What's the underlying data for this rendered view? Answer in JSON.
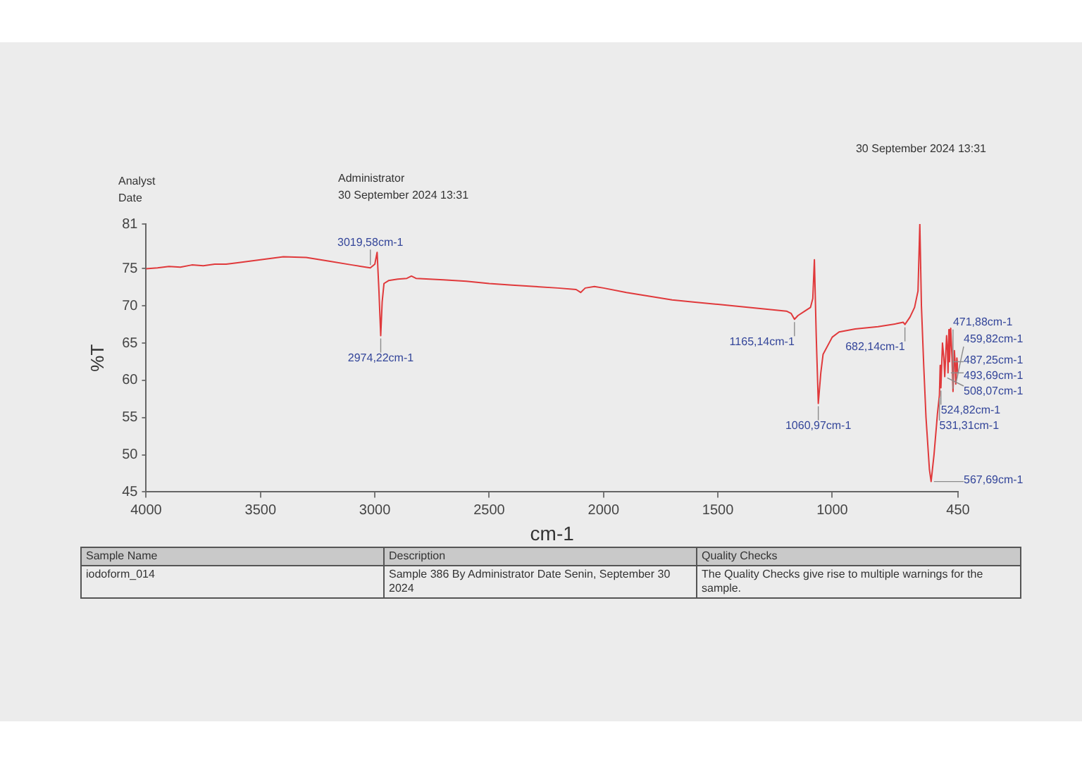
{
  "chart_data": {
    "type": "line",
    "xlabel": "cm-1",
    "ylabel": "%T",
    "x": [
      4000,
      3950,
      3900,
      3850,
      3800,
      3750,
      3700,
      3650,
      3600,
      3500,
      3400,
      3300,
      3200,
      3100,
      3040,
      3019.58,
      3000,
      2990,
      2982,
      2974.22,
      2968,
      2960,
      2940,
      2900,
      2860,
      2840,
      2820,
      2700,
      2600,
      2500,
      2400,
      2300,
      2200,
      2120,
      2100,
      2080,
      2040,
      2000,
      1900,
      1800,
      1700,
      1600,
      1500,
      1400,
      1300,
      1200,
      1180,
      1165.14,
      1150,
      1120,
      1095,
      1085,
      1078,
      1070,
      1060.97,
      1050,
      1040,
      1000,
      970,
      900,
      800,
      720,
      690,
      682.14,
      660,
      640,
      625,
      617,
      610,
      600,
      590,
      575,
      567.69,
      555,
      544,
      540,
      531.31,
      528,
      524.82,
      518,
      512,
      508.07,
      500,
      496,
      493.69,
      490,
      487.25,
      482,
      476,
      471.88,
      466,
      462,
      459.82,
      455,
      450
    ],
    "series": [
      {
        "color": "#e0393b",
        "values": [
          75.0,
          75.1,
          75.3,
          75.2,
          75.5,
          75.4,
          75.6,
          75.6,
          75.8,
          76.2,
          76.6,
          76.5,
          76.0,
          75.5,
          75.2,
          75.1,
          75.6,
          77.2,
          72.0,
          66.0,
          70.5,
          73.0,
          73.4,
          73.6,
          73.7,
          74.0,
          73.7,
          73.5,
          73.3,
          73.0,
          72.8,
          72.6,
          72.4,
          72.2,
          71.8,
          72.4,
          72.6,
          72.4,
          71.8,
          71.3,
          70.8,
          70.5,
          70.2,
          69.9,
          69.6,
          69.3,
          69.0,
          68.2,
          68.7,
          69.3,
          69.8,
          71.0,
          76.2,
          66.0,
          56.9,
          61.0,
          63.5,
          65.8,
          66.5,
          66.9,
          67.2,
          67.6,
          67.8,
          67.5,
          68.5,
          69.8,
          72.0,
          81.0,
          70.0,
          62.0,
          55.0,
          48.0,
          46.4,
          50.0,
          54.0,
          55.5,
          58.0,
          62.0,
          59.0,
          65.0,
          63.0,
          60.5,
          66.0,
          64.0,
          61.0,
          66.8,
          62.5,
          67.0,
          63.0,
          58.5,
          64.0,
          62.0,
          59.5,
          63.0,
          61.0
        ]
      }
    ],
    "xlim": [
      4000,
      450
    ],
    "xticks": [
      4000,
      3500,
      3000,
      2500,
      2000,
      1500,
      1000,
      450
    ],
    "ylim": [
      45,
      81
    ],
    "yticks": [
      45,
      50,
      55,
      60,
      65,
      70,
      75,
      81
    ],
    "grid": false,
    "legend": false,
    "annotations": [
      "Analyst",
      "Administrator",
      "Date",
      "30 September 2024 13:31",
      "30 September 2024 13:31",
      "Sample Name",
      "Description",
      "Quality Checks",
      "iodoform_014",
      "Sample 386 By Administrator Date Senin, September 30 2024",
      "The Quality Checks give rise to multiple warnings for the sample.",
      {
        "text": "3019,58cm-1",
        "x": 3019.58,
        "y": 75.1
      },
      {
        "text": "2974,22cm-1",
        "x": 2974.22,
        "y": 66.0
      },
      {
        "text": "1165,14cm-1",
        "x": 1165.14,
        "y": 68.2
      },
      {
        "text": "1060,97cm-1",
        "x": 1060.97,
        "y": 56.9
      },
      {
        "text": "682,14cm-1",
        "x": 682.14,
        "y": 67.5
      },
      {
        "text": "487,25cm-1",
        "x": 487.25,
        "y": 62.5
      },
      {
        "text": "493,69cm-1",
        "x": 493.69,
        "y": 61.0
      },
      {
        "text": "508,07cm-1",
        "x": 508.07,
        "y": 60.5
      },
      {
        "text": "524,82cm-1",
        "x": 524.82,
        "y": 59.0
      },
      {
        "text": "459,82cm-1",
        "x": 459.82,
        "y": 59.5
      },
      {
        "text": "531,31cm-1",
        "x": 531.31,
        "y": 58.0
      },
      {
        "text": "567,69cm-1",
        "x": 567.69,
        "y": 46.4
      },
      {
        "text": "471,88cm-1",
        "x": 471.88,
        "y": 58.5
      }
    ]
  }
}
